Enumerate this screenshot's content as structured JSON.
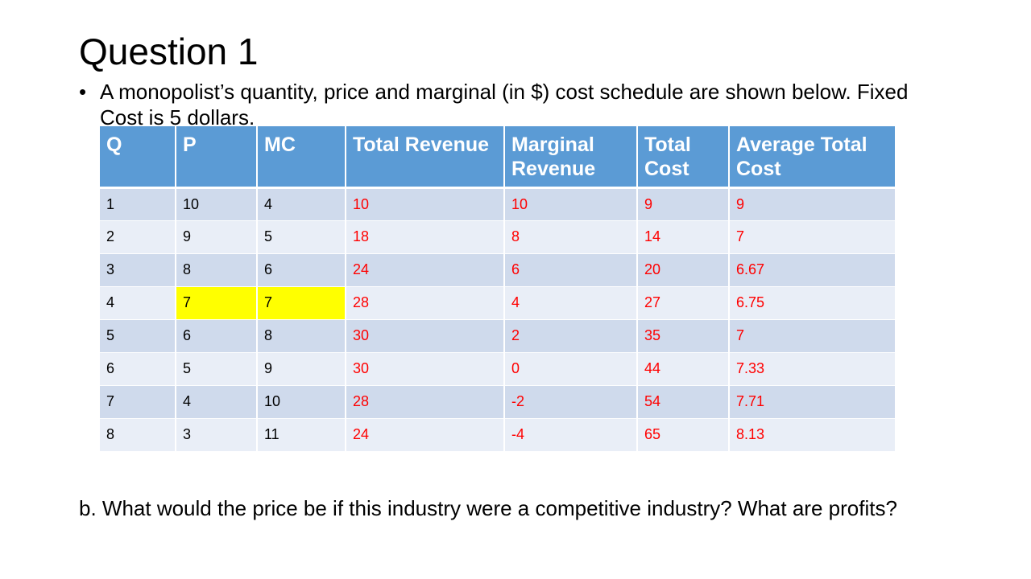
{
  "slide": {
    "title": "Question 1",
    "bullet_marker": "•",
    "bullet_text": "A monopolist’s quantity, price and marginal (in $) cost schedule are shown below. Fixed Cost is 5 dollars.",
    "question_b": "b. What would the price be if this industry were a competitive industry? What are profits?"
  },
  "colors": {
    "header_bg": "#5b9bd5",
    "row_odd_bg": "#cfdaec",
    "row_even_bg": "#e9eef7",
    "highlight": "#ffff00",
    "computed_text": "#ff0000"
  },
  "table": {
    "headers": [
      "Q",
      "P",
      "MC",
      "Total Revenue",
      "Marginal Revenue",
      "Total Cost",
      "Average Total Cost"
    ],
    "rows": [
      [
        "1",
        "10",
        "4",
        "10",
        "10",
        "9",
        "9"
      ],
      [
        "2",
        "9",
        "5",
        "18",
        "8",
        "14",
        "7"
      ],
      [
        "3",
        "8",
        "6",
        "24",
        "6",
        "20",
        "6.67"
      ],
      [
        "4",
        "7",
        "7",
        "28",
        "4",
        "27",
        "6.75"
      ],
      [
        "5",
        "6",
        "8",
        "30",
        "2",
        "35",
        "7"
      ],
      [
        "6",
        "5",
        "9",
        "30",
        "0",
        "44",
        "7.33"
      ],
      [
        "7",
        "4",
        "10",
        "28",
        "-2",
        "54",
        "7.71"
      ],
      [
        "8",
        "3",
        "11",
        "24",
        "-4",
        "65",
        "8.13"
      ]
    ],
    "highlighted_cells": [
      {
        "row": 4,
        "columns": [
          "P",
          "MC"
        ]
      }
    ]
  }
}
